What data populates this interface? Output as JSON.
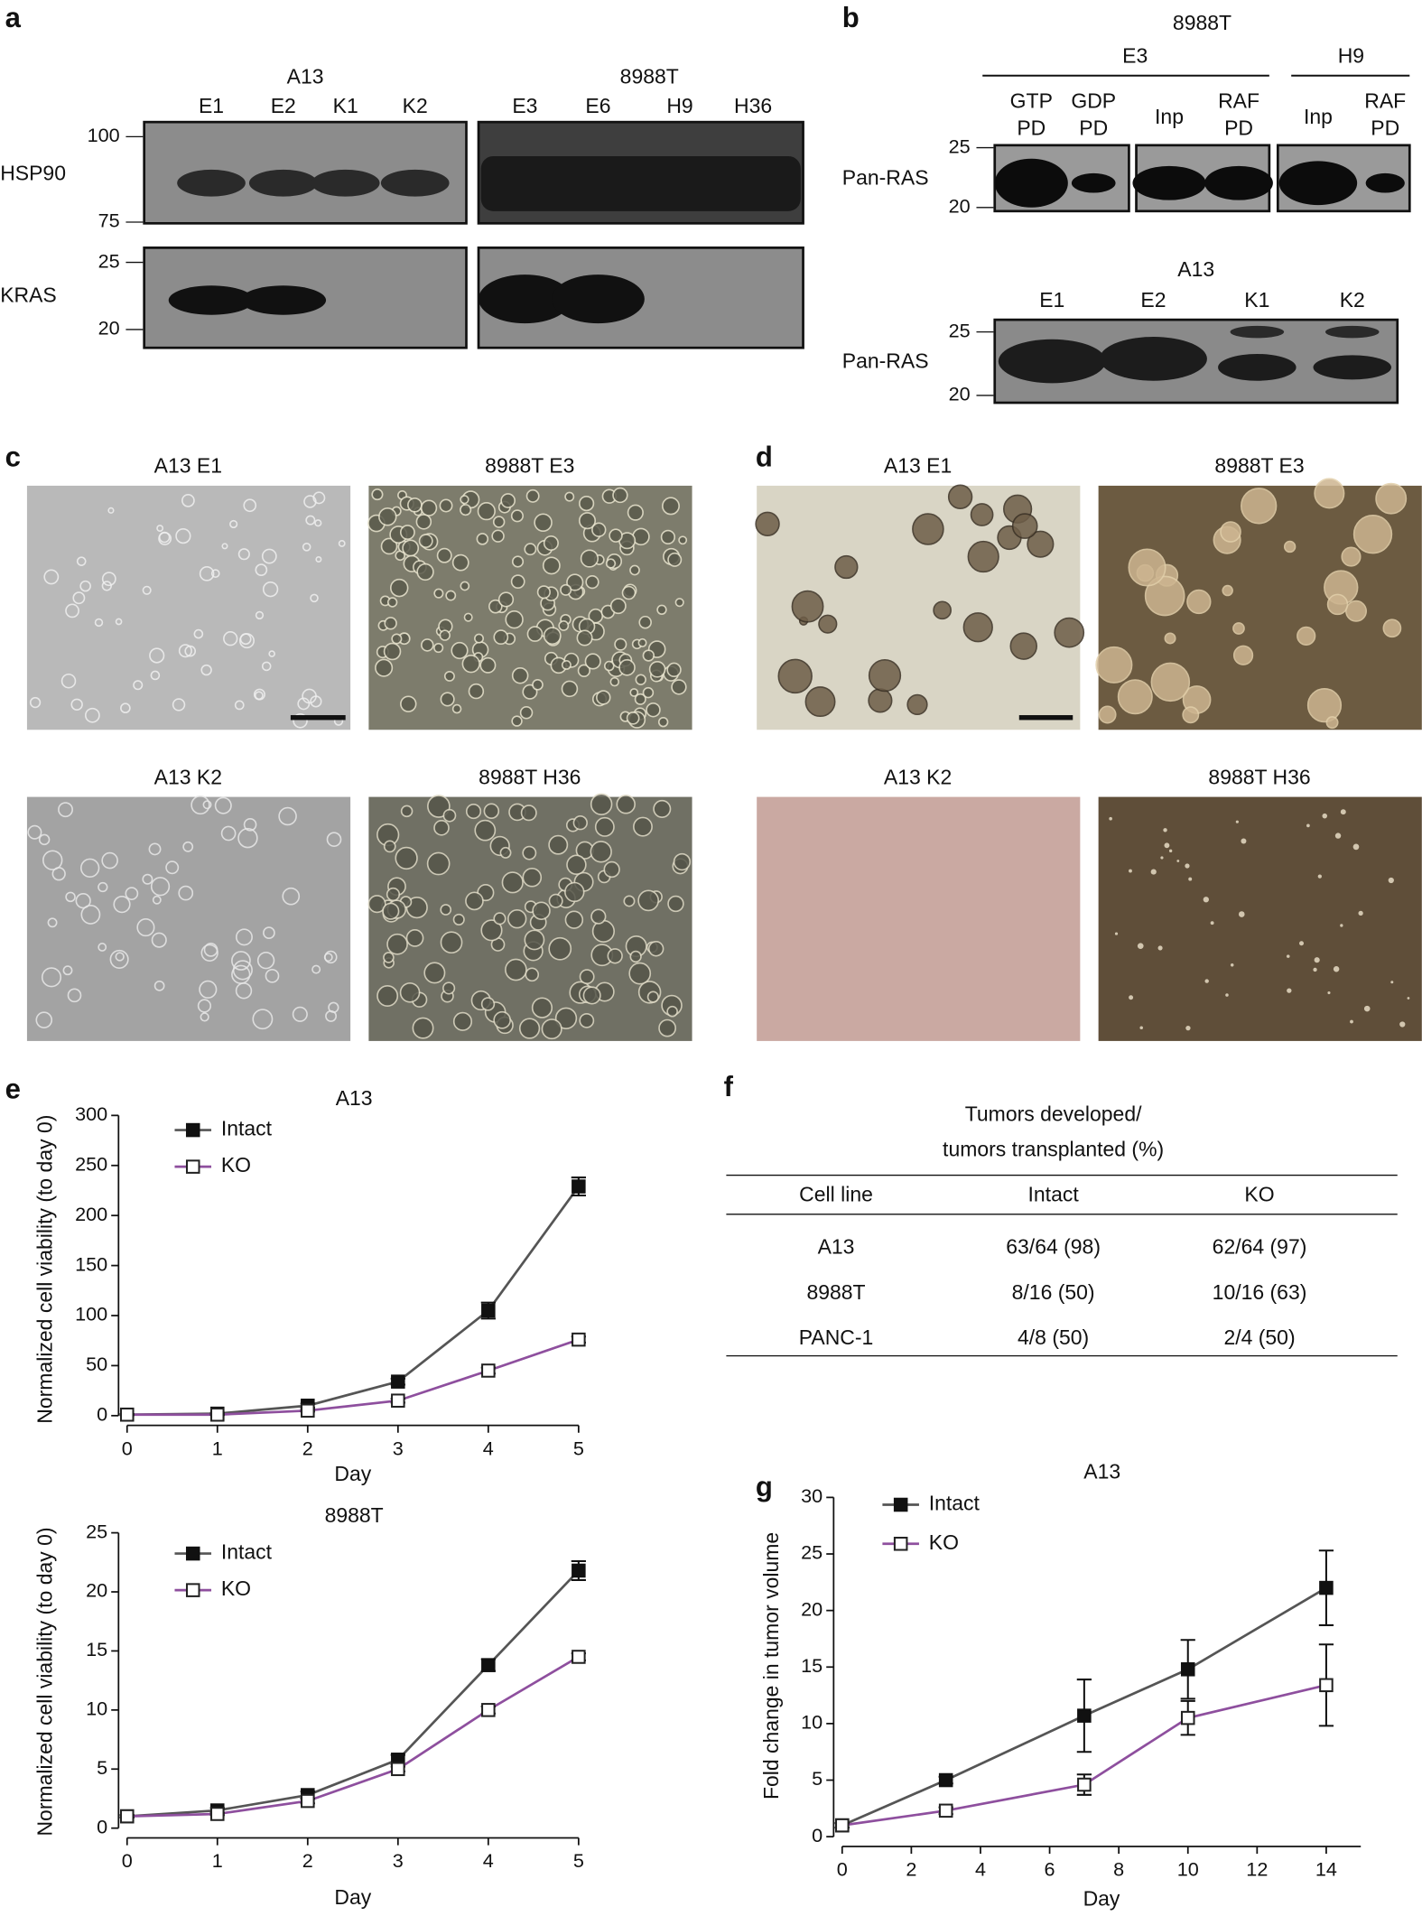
{
  "figure": {
    "a": {
      "label": "a",
      "groups": [
        {
          "name": "A13",
          "lanes": [
            "E1",
            "E2",
            "K1",
            "K2"
          ]
        },
        {
          "name": "8988T",
          "lanes": [
            "E3",
            "E6",
            "H9",
            "H36"
          ]
        }
      ],
      "rows": [
        {
          "name": "HSP90",
          "markers": [
            100,
            75
          ]
        },
        {
          "name": "KRAS",
          "markers": [
            25,
            20
          ]
        }
      ]
    },
    "b": {
      "label": "b",
      "top": {
        "title": "8988T",
        "groups": [
          "E3",
          "H9"
        ],
        "lanes": [
          [
            "GTP",
            "PD"
          ],
          [
            "GDP",
            "PD"
          ],
          [
            "Inp"
          ],
          [
            "RAF",
            "PD"
          ],
          [
            "Inp"
          ],
          [
            "RAF",
            "PD"
          ]
        ],
        "row": "Pan-RAS",
        "markers": [
          25,
          20
        ]
      },
      "bottom": {
        "title": "A13",
        "lanes": [
          "E1",
          "E2",
          "K1",
          "K2"
        ],
        "row": "Pan-RAS",
        "markers": [
          25,
          20
        ]
      }
    },
    "c": {
      "label": "c",
      "images": [
        "A13 E1",
        "8988T E3",
        "A13 K2",
        "8988T H36"
      ]
    },
    "d": {
      "label": "d",
      "images": [
        "A13 E1",
        "8988T E3",
        "A13 K2",
        "8988T H36"
      ]
    },
    "e": {
      "label": "e"
    },
    "f": {
      "label": "f",
      "title": [
        "Tumors developed/",
        "tumors transplanted (%)"
      ],
      "table": {
        "header": [
          "Cell line",
          "Intact",
          "KO"
        ],
        "rows": [
          [
            "A13",
            "63/64 (98)",
            "62/64 (97)"
          ],
          [
            "8988T",
            "8/16 (50)",
            "10/16 (63)"
          ],
          [
            "PANC-1",
            "4/8 (50)",
            "2/4 (50)"
          ]
        ]
      }
    },
    "g": {
      "label": "g"
    }
  },
  "chart_data": [
    {
      "type": "line",
      "title": "A13",
      "x_label": "Day",
      "y_label": "Normalized cell viability (to day 0)",
      "x": [
        0,
        1,
        2,
        3,
        4,
        5
      ],
      "xlim": [
        0,
        5
      ],
      "xticks": [
        0,
        1,
        2,
        3,
        4,
        5
      ],
      "ylim": [
        0,
        300
      ],
      "yticks": [
        0,
        50,
        100,
        150,
        200,
        250,
        300
      ],
      "series": [
        {
          "name": "Intact",
          "color": "#555555",
          "values": [
            1,
            2,
            10,
            34,
            105,
            229
          ],
          "errors": [
            0.5,
            1,
            2,
            3,
            8,
            9
          ]
        },
        {
          "name": "KO",
          "color": "#8e4f9e",
          "values": [
            1,
            1,
            5,
            15,
            45,
            76
          ],
          "errors": [
            0.5,
            0.5,
            1,
            2,
            3,
            3
          ]
        }
      ]
    },
    {
      "type": "line",
      "title": "8988T",
      "x_label": "Day",
      "y_label": "Normalized cell viability (to day 0)",
      "x": [
        0,
        1,
        2,
        3,
        4,
        5
      ],
      "xlim": [
        0,
        5
      ],
      "xticks": [
        0,
        1,
        2,
        3,
        4,
        5
      ],
      "ylim": [
        0,
        25
      ],
      "yticks": [
        0,
        5,
        10,
        15,
        20,
        25
      ],
      "series": [
        {
          "name": "Intact",
          "color": "#555555",
          "values": [
            1,
            1.5,
            2.8,
            5.8,
            13.8,
            21.8
          ],
          "errors": [
            0.1,
            0.2,
            0.3,
            0.4,
            0.5,
            0.8
          ]
        },
        {
          "name": "KO",
          "color": "#8e4f9e",
          "values": [
            1,
            1.2,
            2.3,
            5,
            10,
            14.5
          ],
          "errors": [
            0.1,
            0.1,
            0.2,
            0.2,
            0.3,
            0.3
          ]
        }
      ]
    },
    {
      "type": "line",
      "title": "A13",
      "x_label": "Day",
      "y_label": "Fold change in tumor volume",
      "x": [
        0,
        3,
        7,
        10,
        14
      ],
      "xlim": [
        0,
        15
      ],
      "xticks": [
        0,
        2,
        4,
        6,
        8,
        10,
        12,
        14
      ],
      "ylim": [
        0,
        30
      ],
      "yticks": [
        0,
        5,
        10,
        15,
        20,
        25,
        30
      ],
      "series": [
        {
          "name": "Intact",
          "color": "#555555",
          "values": [
            1,
            5,
            10.7,
            14.8,
            22
          ],
          "errors": [
            0.2,
            0.3,
            3.2,
            2.6,
            3.3
          ]
        },
        {
          "name": "KO",
          "color": "#8e4f9e",
          "values": [
            1,
            2.3,
            4.6,
            10.5,
            13.4
          ],
          "errors": [
            0.2,
            0.3,
            0.9,
            1.5,
            3.6
          ]
        }
      ]
    }
  ]
}
